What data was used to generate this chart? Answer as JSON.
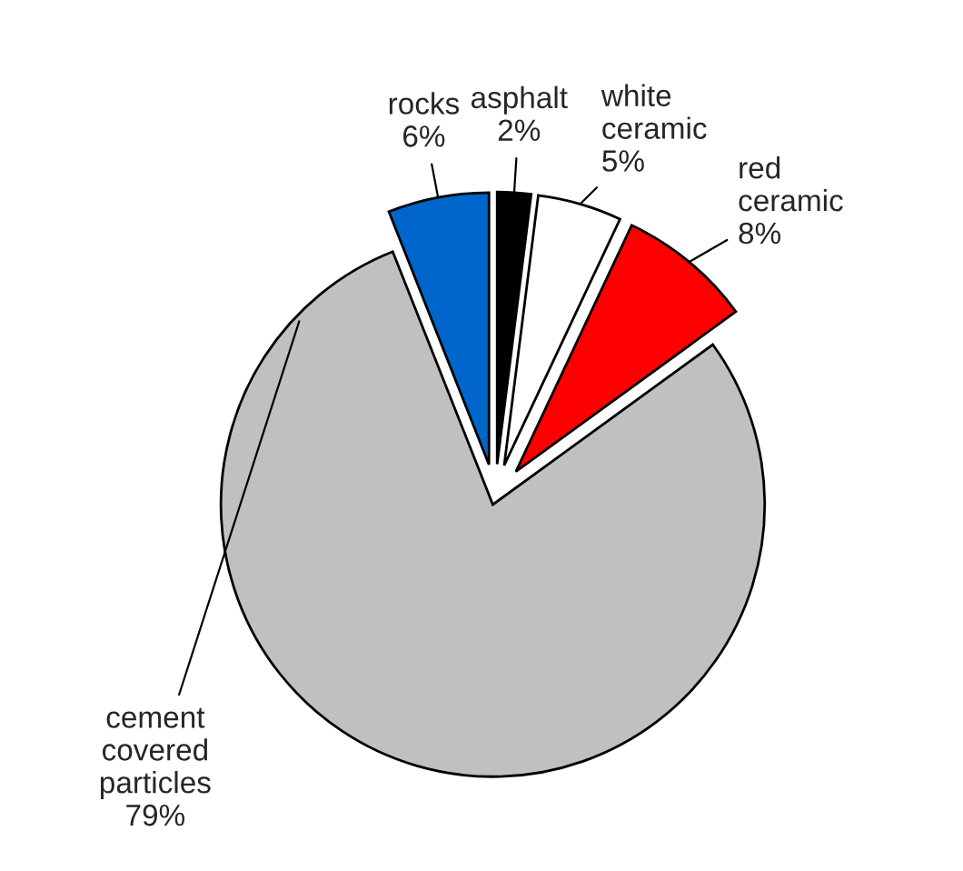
{
  "chart_data": {
    "type": "pie",
    "categories": [
      "asphalt",
      "white ceramic",
      "red ceramic",
      "cement covered particles",
      "rocks"
    ],
    "values": [
      2,
      5,
      8,
      79,
      6
    ],
    "value_labels": [
      "2%",
      "5%",
      "8%",
      "79%",
      "6%"
    ],
    "colors": [
      "#000000",
      "#ffffff",
      "#ff0000",
      "#c0c0c0",
      "#0066cc"
    ],
    "legend": false
  }
}
